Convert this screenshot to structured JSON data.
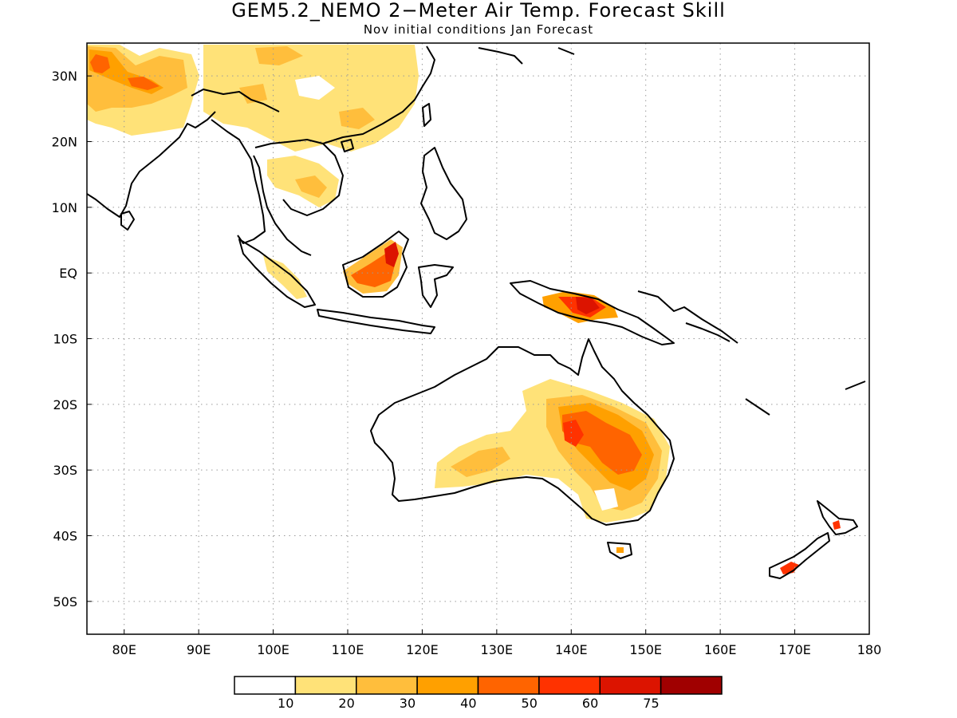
{
  "figure": {
    "title": "GEM5.2_NEMO 2−Meter Air Temp. Forecast Skill",
    "subtitle": "Nov initial conditions  Jan Forecast"
  },
  "map": {
    "lon_range": [
      75,
      180
    ],
    "lat_range": [
      -55,
      35
    ],
    "grid": "dotted",
    "lat_ticks": [
      {
        "value": 30,
        "label": "30N"
      },
      {
        "value": 20,
        "label": "20N"
      },
      {
        "value": 10,
        "label": "10N"
      },
      {
        "value": 0,
        "label": "EQ"
      },
      {
        "value": -10,
        "label": "10S"
      },
      {
        "value": -20,
        "label": "20S"
      },
      {
        "value": -30,
        "label": "30S"
      },
      {
        "value": -40,
        "label": "40S"
      },
      {
        "value": -50,
        "label": "50S"
      }
    ],
    "lon_ticks": [
      {
        "value": 80,
        "label": "80E"
      },
      {
        "value": 90,
        "label": "90E"
      },
      {
        "value": 100,
        "label": "100E"
      },
      {
        "value": 110,
        "label": "110E"
      },
      {
        "value": 120,
        "label": "120E"
      },
      {
        "value": 130,
        "label": "130E"
      },
      {
        "value": 140,
        "label": "140E"
      },
      {
        "value": 150,
        "label": "150E"
      },
      {
        "value": 160,
        "label": "160E"
      },
      {
        "value": 170,
        "label": "170E"
      },
      {
        "value": 180,
        "label": "180"
      }
    ]
  },
  "colorbar": {
    "colors": [
      "#ffffff",
      "#ffe278",
      "#ffbe3c",
      "#ffa000",
      "#ff6400",
      "#ff3200",
      "#dc1400",
      "#a00000"
    ],
    "labels": [
      "10",
      "20",
      "30",
      "40",
      "50",
      "60",
      "75"
    ]
  },
  "chart_data": {
    "type": "heatmap",
    "variable": "2-Meter Air Temp. Forecast Skill",
    "color_levels": [
      10,
      20,
      30,
      40,
      50,
      60,
      75
    ],
    "regions": [
      {
        "lon": [
          76,
          80
        ],
        "lat": [
          29,
          34
        ],
        "level": 50
      },
      {
        "lon": [
          80,
          90
        ],
        "lat": [
          22,
          35
        ],
        "level": 20
      },
      {
        "lon": [
          85,
          92
        ],
        "lat": [
          27,
          30
        ],
        "level": 40
      },
      {
        "lon": [
          92,
          120
        ],
        "lat": [
          24,
          35
        ],
        "level": 10
      },
      {
        "lon": [
          98,
          108
        ],
        "lat": [
          11,
          18
        ],
        "level": 10
      },
      {
        "lon": [
          104,
          108
        ],
        "lat": [
          12,
          14
        ],
        "level": 20
      },
      {
        "lon": [
          109,
          118
        ],
        "lat": [
          -3,
          6
        ],
        "level": 30
      },
      {
        "lon": [
          115,
          117
        ],
        "lat": [
          1,
          5
        ],
        "level": 50
      },
      {
        "lon": [
          137,
          145
        ],
        "lat": [
          -8,
          -3
        ],
        "level": 40
      },
      {
        "lon": [
          140,
          144
        ],
        "lat": [
          -6,
          -4
        ],
        "level": 60
      },
      {
        "lon": [
          127,
          154
        ],
        "lat": [
          -38,
          -16
        ],
        "level": 20
      },
      {
        "lon": [
          140,
          153
        ],
        "lat": [
          -32,
          -20
        ],
        "level": 40
      },
      {
        "lon": [
          140,
          143
        ],
        "lat": [
          -27,
          -24
        ],
        "level": 50
      },
      {
        "lon": [
          168,
          170
        ],
        "lat": [
          -46,
          -44
        ],
        "level": 50
      },
      {
        "lon": [
          175,
          176
        ],
        "lat": [
          -39,
          -38
        ],
        "level": 50
      }
    ]
  }
}
